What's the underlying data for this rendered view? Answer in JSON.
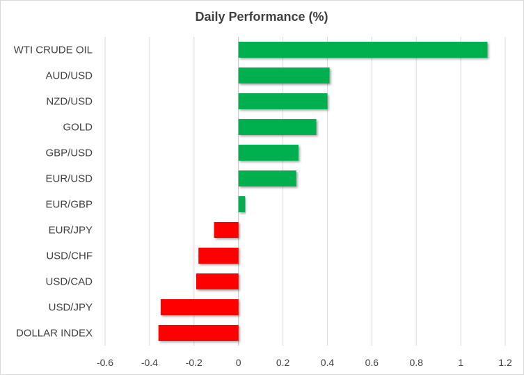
{
  "chart_data": {
    "type": "bar",
    "orientation": "horizontal",
    "title": "Daily Performance  (%)",
    "categories": [
      "WTI CRUDE OIL",
      "AUD/USD",
      "NZD/USD",
      "GOLD",
      "GBP/USD",
      "EUR/USD",
      "EUR/GBP",
      "EUR/JPY",
      "USD/CHF",
      "USD/CAD",
      "USD/JPY",
      "DOLLAR INDEX"
    ],
    "values": [
      1.12,
      0.41,
      0.4,
      0.35,
      0.27,
      0.26,
      0.03,
      -0.11,
      -0.18,
      -0.19,
      -0.35,
      -0.36
    ],
    "xlabel": "",
    "ylabel": "",
    "xlim": [
      -0.6,
      1.2
    ],
    "ticks": [
      "-0.6",
      "-0.4",
      "-0.2",
      "0",
      "0.2",
      "0.4",
      "0.6",
      "0.8",
      "1",
      "1.2"
    ],
    "grid": true,
    "legend": "none",
    "colors": {
      "positive": "#00b050",
      "negative": "#ff0000",
      "gridline": "#d9d9d9",
      "text": "#404040"
    }
  }
}
